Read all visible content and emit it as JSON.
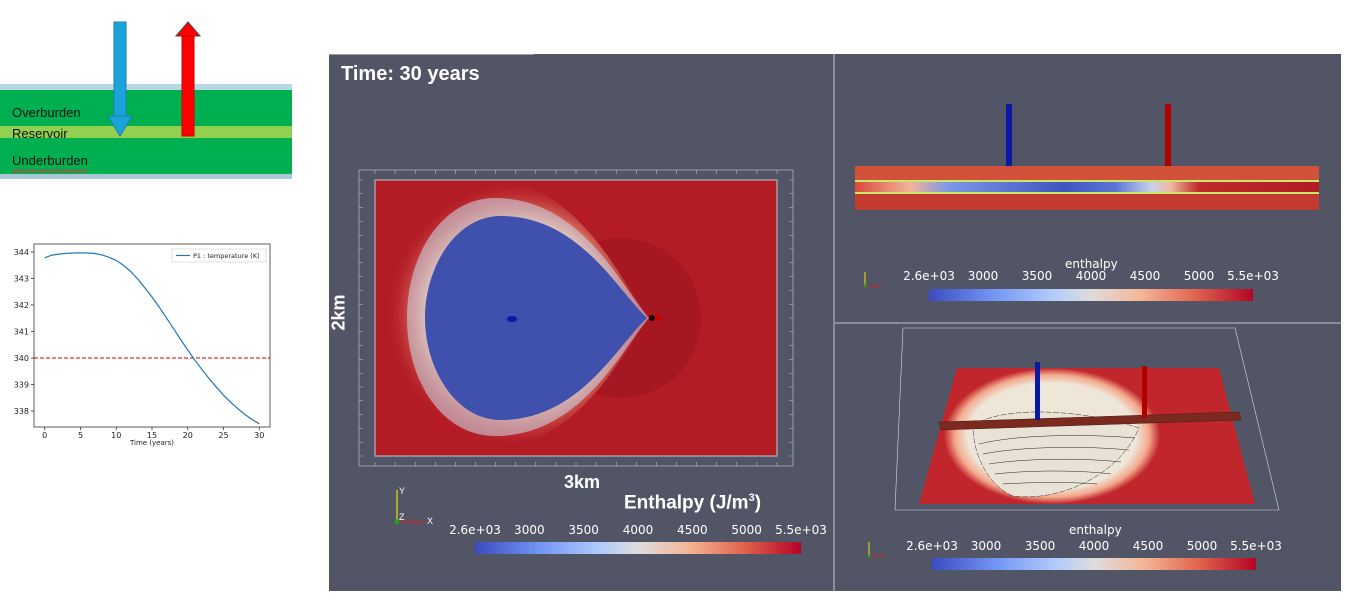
{
  "schematic": {
    "layers": [
      {
        "label": "Overburden",
        "color": "#00b050"
      },
      {
        "label": "Reservoir",
        "color": "#92d050"
      },
      {
        "label": "Underburden",
        "color": "#00b050"
      }
    ],
    "injector_arrow_color": "#1ba4d9",
    "producer_arrow_color": "#ff0000"
  },
  "temp_plot": {
    "legend": "P1 : temperature (K)",
    "xlabel": "Time (years)",
    "x_ticks": [
      "0",
      "5",
      "10",
      "15",
      "20",
      "25",
      "30"
    ],
    "y_ticks": [
      "338",
      "339",
      "340",
      "341",
      "342",
      "343",
      "344"
    ],
    "threshold": 340,
    "line_color": "#1f77b4",
    "threshold_color": "#c00000"
  },
  "chart_data": {
    "type": "line",
    "title": "",
    "xlabel": "Time (years)",
    "ylabel": "",
    "xlim": [
      -1.5,
      31.5
    ],
    "ylim": [
      337.4,
      344.3
    ],
    "series": [
      {
        "name": "P1 : temperature (K)",
        "x": [
          0,
          1,
          2,
          3,
          4,
          5,
          6,
          7,
          8,
          9,
          10,
          11,
          12,
          13,
          14,
          15,
          16,
          17,
          18,
          19,
          20,
          21,
          22,
          23,
          24,
          25,
          26,
          27,
          28,
          29,
          30
        ],
        "y": [
          343.78,
          343.88,
          343.92,
          343.95,
          343.96,
          343.97,
          343.96,
          343.94,
          343.89,
          343.8,
          343.68,
          343.5,
          343.27,
          342.98,
          342.65,
          342.3,
          341.92,
          341.52,
          341.11,
          340.7,
          340.3,
          339.92,
          339.56,
          339.22,
          338.9,
          338.6,
          338.33,
          338.09,
          337.87,
          337.68,
          337.52
        ]
      },
      {
        "name": "",
        "x": [
          -1.5,
          31.5
        ],
        "y": [
          340,
          340
        ]
      }
    ]
  },
  "viewer": {
    "time_label": "Time: 30 years",
    "dim_x": "3km",
    "dim_y": "2km",
    "main_colorbar_title": "Enthalpy (J/m",
    "main_colorbar_sup": "3",
    "main_colorbar_close": ")",
    "colorbar_ticks": [
      "2.6e+03",
      "3000",
      "3500",
      "4000",
      "4500",
      "5000",
      "5.5e+03"
    ],
    "small_colorbar_title": "enthalpy",
    "axis_x": "X",
    "axis_y": "Y",
    "axis_z": "Z",
    "injector_color": "#0a1aa0",
    "producer_color": "#b00000",
    "background": "#525566"
  }
}
